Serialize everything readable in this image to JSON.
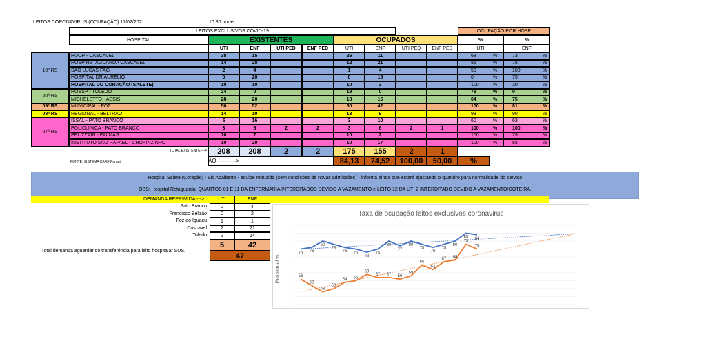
{
  "header": {
    "title": "LEITOS CORONAVIRUS (OCUPAÇÃO) 17/02/2021",
    "time": "10:30 horas",
    "subtitle": "LEITOS EXCLUSIVOS COVID-19",
    "hospital_col": "HOSPITAL",
    "existentes": "EXISTENTES",
    "ocupados": "OCUPADOS",
    "ocupacao_por_hosp": "OCUPAÇÃO POR HOSP",
    "sub_cols": [
      "UTI",
      "ENF",
      "UTI PED",
      "ENF PED"
    ],
    "pct_cols": [
      "%",
      "%"
    ],
    "pct_sub": [
      "UTI",
      "ENF"
    ]
  },
  "colors": {
    "existentes_green": "#1fb45a",
    "ocupados_yellow": "#ffe17a",
    "ocup_header": "#f4b183",
    "blue": "#8eaadb",
    "green": "#a9d08e",
    "orange": "#f4b183",
    "yellow": "#ffff00",
    "pink": "#ff66cc",
    "lightpink": "#f8a5d8",
    "total_orange": "#c55a11",
    "obs_blue": "#8eaadb",
    "demand_yellow": "#ffff00",
    "line_blue": "#4472c4",
    "line_orange": "#ed7d31"
  },
  "regions": [
    {
      "label": "10ª RS"
    },
    {
      "label": "20ª RS"
    },
    {
      "label": "09ª RS"
    },
    {
      "label": "08ª RS"
    },
    {
      "label": "07ª RS"
    }
  ],
  "rows": [
    {
      "name": "HUOP - CASCAVEL",
      "e": [
        "38",
        "15",
        "",
        ""
      ],
      "o": [
        "26",
        "11",
        "",
        ""
      ],
      "p": [
        "68",
        "73"
      ]
    },
    {
      "name": "HOSP RETAGUARDA CASCAVEL",
      "e": [
        "14",
        "28",
        "",
        ""
      ],
      "o": [
        "12",
        "21",
        "",
        ""
      ],
      "p": [
        "86",
        "75"
      ]
    },
    {
      "name": "SÃO LUCAS FAG",
      "e": [
        "2",
        "4",
        "",
        ""
      ],
      "o": [
        "1",
        "4",
        "",
        ""
      ],
      "p": [
        "50",
        "100"
      ]
    },
    {
      "name": "HOSPITAL DR AURELIO",
      "e": [
        "0",
        "20",
        "",
        ""
      ],
      "o": [
        "0",
        "15",
        "",
        ""
      ],
      "p": [
        "0",
        "75"
      ]
    },
    {
      "name": "HOSPITAL DO CORAÇÃO (SALETE)",
      "e": [
        "10",
        "10",
        "",
        ""
      ],
      "o": [
        "10",
        "3",
        "",
        ""
      ],
      "p": [
        "100",
        "30"
      ]
    },
    {
      "name": "HOESP - TOLEDO",
      "e": [
        "24",
        "0",
        "",
        ""
      ],
      "o": [
        "19",
        "0",
        "",
        ""
      ],
      "p": [
        "79",
        "0"
      ]
    },
    {
      "name": "MICHELETTO - ASSIS",
      "e": [
        "28",
        "20",
        "",
        ""
      ],
      "o": [
        "18",
        "15",
        "",
        ""
      ],
      "p": [
        "64",
        "75"
      ]
    },
    {
      "name": "MUNICIPAL - FOZ",
      "e": [
        "50",
        "52",
        "",
        ""
      ],
      "o": [
        "50",
        "42",
        "",
        ""
      ],
      "p": [
        "100",
        "81"
      ]
    },
    {
      "name": "REGIONAL - BELTRAO",
      "e": [
        "14",
        "10",
        "",
        ""
      ],
      "o": [
        "13",
        "9",
        "",
        ""
      ],
      "p": [
        "93",
        "90"
      ]
    },
    {
      "name": "ISSAL - PATO BRANCO",
      "e": [
        "5",
        "16",
        "",
        ""
      ],
      "o": [
        "3",
        "10",
        "",
        ""
      ],
      "p": [
        "60",
        "63"
      ]
    },
    {
      "name": "POLICLINICA - PATO BRANCO",
      "e": [
        "3",
        "6",
        "2",
        "2"
      ],
      "o": [
        "3",
        "6",
        "2",
        "1"
      ],
      "p": [
        "100",
        "100"
      ]
    },
    {
      "name": "PELIZZARI - PALMAS",
      "e": [
        "10",
        "7",
        "",
        ""
      ],
      "o": [
        "10",
        "2",
        "",
        ""
      ],
      "p": [
        "100",
        "29"
      ]
    },
    {
      "name": "INSTITUTO SÃO RAFAEL - CHOPINZINHO",
      "e": [
        "10",
        "20",
        "",
        ""
      ],
      "o": [
        "10",
        "17",
        "",
        ""
      ],
      "p": [
        "100",
        "85"
      ]
    }
  ],
  "pct_sign": "%",
  "totals": {
    "label": "TOTAL EXISTENTE---->",
    "e": [
      "208",
      "208",
      "2",
      "2"
    ],
    "o": [
      "175",
      "155",
      "2",
      "1"
    ],
    "source": "FONTE: SISTEMA CARE Paraná",
    "arrow_text": "ÃO ---------->",
    "pct": [
      "84,13",
      "74,52",
      "100,00",
      "50,00"
    ],
    "pct_sign": "%"
  },
  "obs": {
    "line1": "Hospital Salete (Coração) - Sic Adalberto - equipe reduzida (sem condições de novas admissões) - informa ainda que estará ajustando o quandro para normalidade do serviço",
    "line2": "OBS: Hospital Retaguarda: QUARTOS 01 E 11 DA ENFERMARIA INTERDITADOS DEVIDO A VAZAMENTO e LEITO 12 DA UTI 2 INTERDITADO DEVIDO A VAZAMENTO/GOTEIRA."
  },
  "demanda": {
    "label": "DEMANDA REPRIMIDA --->",
    "cols": [
      "UTI",
      "ENF"
    ],
    "rows": [
      {
        "city": "Pato Branco",
        "uti": "0",
        "enf": "4"
      },
      {
        "city": "Francisco Beltrão",
        "uti": "0",
        "enf": "2"
      },
      {
        "city": "Foz do Iguaçu",
        "uti": "1",
        "enf": "1"
      },
      {
        "city": "Cascavel",
        "uti": "2",
        "enf": "21"
      },
      {
        "city": "Toledo",
        "uti": "2",
        "enf": "14"
      }
    ],
    "total_uti": "5",
    "total_enf": "42",
    "total": "47",
    "note": "Total demanda aguardando transferência para leito hospitalar SUS."
  },
  "chart_data": {
    "type": "line",
    "title": "Taxa de ocupação leitos exclusivos coronavirus",
    "ylabel": "Percentual %",
    "ylim": [
      40,
      90
    ],
    "series": [
      {
        "name": "",
        "color": "#4472c4",
        "values": [
          75,
          76,
          80,
          78,
          76,
          75,
          73,
          75,
          80,
          77,
          80,
          78,
          76,
          78,
          80,
          85,
          84
        ]
      },
      {
        "name": "",
        "color": "#ed7d31",
        "values": [
          56,
          52,
          48,
          50,
          54,
          55,
          59,
          57,
          57,
          56,
          58,
          65,
          62,
          67,
          68,
          78,
          75
        ]
      }
    ],
    "trendlines": true
  }
}
